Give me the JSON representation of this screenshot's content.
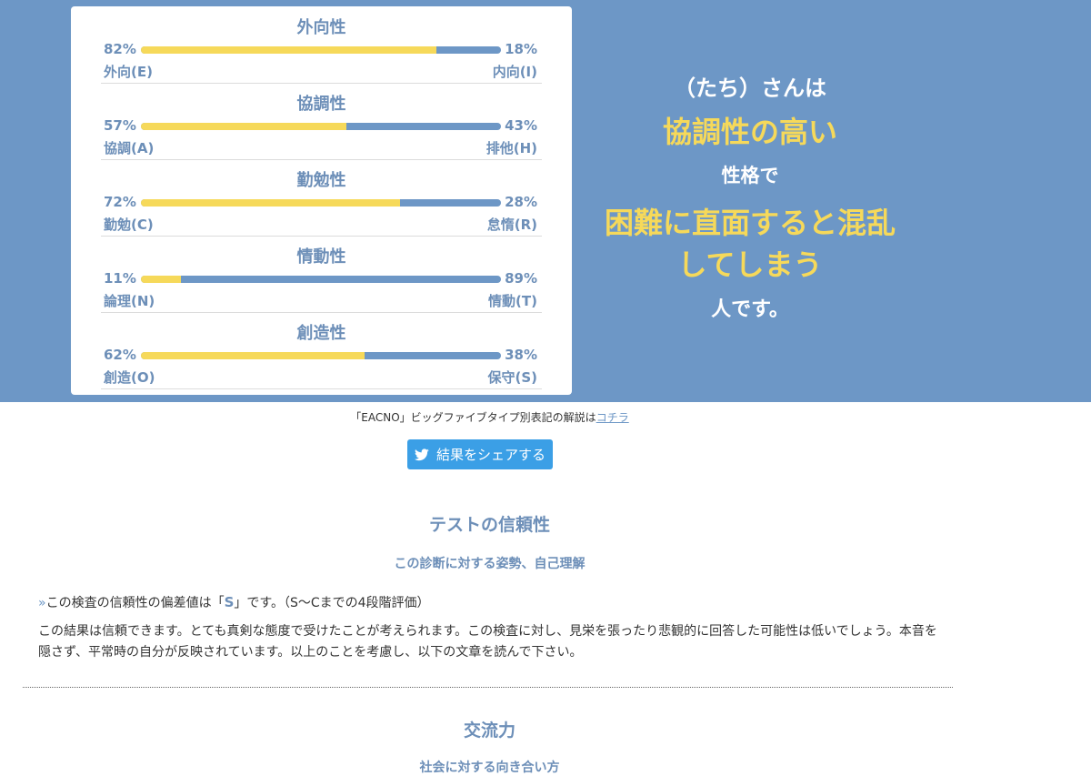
{
  "traits": [
    {
      "title": "外向性",
      "left_pct": "82%",
      "right_pct": "18%",
      "left_label": "外向(E)",
      "right_label": "内向(I)",
      "fill": 0.82
    },
    {
      "title": "協調性",
      "left_pct": "57%",
      "right_pct": "43%",
      "left_label": "協調(A)",
      "right_label": "排他(H)",
      "fill": 0.57
    },
    {
      "title": "勤勉性",
      "left_pct": "72%",
      "right_pct": "28%",
      "left_label": "勤勉(C)",
      "right_label": "怠惰(R)",
      "fill": 0.72
    },
    {
      "title": "情動性",
      "left_pct": "11%",
      "right_pct": "89%",
      "left_label": "論理(N)",
      "right_label": "情動(T)",
      "fill": 0.11
    },
    {
      "title": "創造性",
      "left_pct": "62%",
      "right_pct": "38%",
      "left_label": "創造(O)",
      "right_label": "保守(S)",
      "fill": 0.62
    }
  ],
  "summary": {
    "line1": "（たち）さんは",
    "line2": "協調性の高い",
    "line3": "性格で",
    "line4": "困難に直面すると混乱",
    "line5": "してしまう",
    "line6": "人です。"
  },
  "guide": {
    "text": "「EACNO」ビッグファイブタイプ別表記の解説は",
    "link": "コチラ"
  },
  "share": {
    "label": "結果をシェアする",
    "icon": "twitter-bird-icon"
  },
  "reliability": {
    "heading": "テストの信頼性",
    "subheading": "この診断に対する姿勢、自己理解",
    "arrow": "»",
    "pre": "この検査の信頼性の偏差値は「",
    "grade": "S",
    "post": "」です。（S〜Cまでの4段階評価）",
    "paragraph": "この結果は信頼できます。とても真剣な態度で受けたことが考えられます。この検査に対し、見栄を張ったり悲観的に回答した可能性は低いでしょう。本音を隠さず、平常時の自分が反映されています。以上のことを考慮し、以下の文章を読んで下さい。"
  },
  "communication": {
    "heading": "交流力",
    "subheading": "社会に対する向き合い方"
  },
  "colors": {
    "accent_blue": "#6d97c6",
    "accent_yellow": "#f6d95a",
    "share_blue": "#3b9fe6"
  }
}
